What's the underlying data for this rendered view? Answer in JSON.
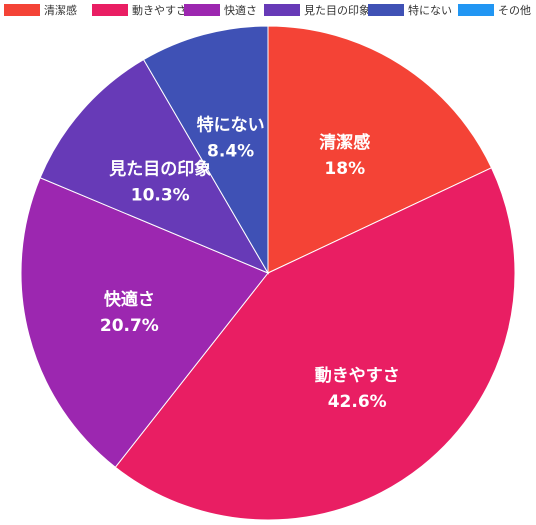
{
  "chart_data": {
    "type": "pie",
    "categories": [
      "清潔感",
      "動きやすさ",
      "快適さ",
      "見た目の印象",
      "特にない",
      "その他"
    ],
    "values": [
      18,
      42.6,
      20.7,
      10.3,
      8.4,
      0
    ],
    "value_labels": [
      "18%",
      "42.6%",
      "20.7%",
      "10.3%",
      "8.4%",
      ""
    ],
    "colors": [
      "#f44336",
      "#e91e63",
      "#9c27b0",
      "#673ab7",
      "#3f51b5",
      "#2196f3"
    ],
    "title": "",
    "legend_position": "top"
  }
}
